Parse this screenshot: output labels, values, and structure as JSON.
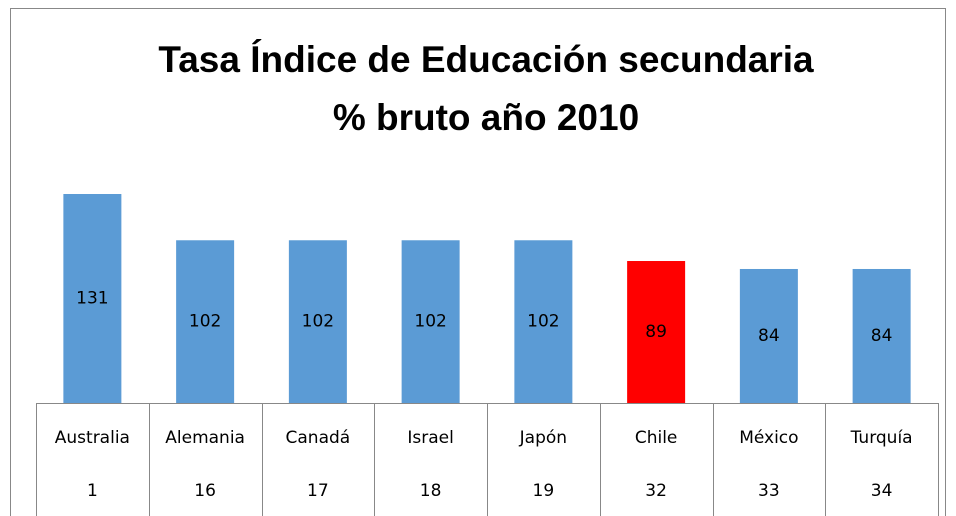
{
  "chart_data": {
    "type": "bar",
    "title": [
      "Tasa Índice de Educación secundaria",
      "% bruto año 2010"
    ],
    "categories": [
      "Australia",
      "Alemania",
      "Canadá",
      "Israel",
      "Japón",
      "Chile",
      "México",
      "Turquía"
    ],
    "ranks": [
      1,
      16,
      17,
      18,
      19,
      32,
      33,
      34
    ],
    "values": [
      131,
      102,
      102,
      102,
      102,
      89,
      84,
      84
    ],
    "colors": [
      "#5b9bd5",
      "#5b9bd5",
      "#5b9bd5",
      "#5b9bd5",
      "#5b9bd5",
      "#ff0000",
      "#5b9bd5",
      "#5b9bd5"
    ]
  }
}
